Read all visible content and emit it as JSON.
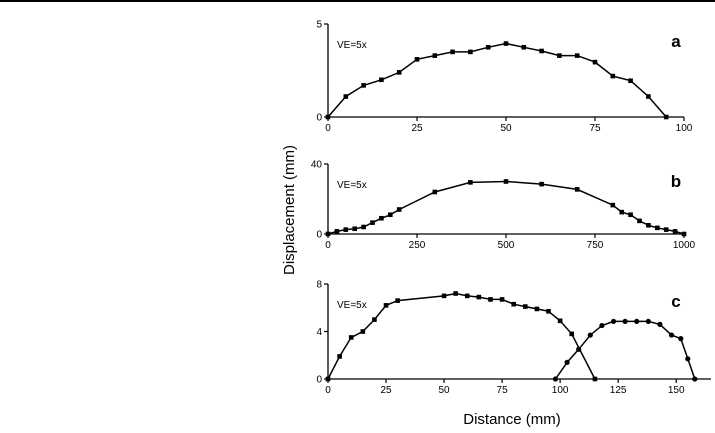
{
  "xlabel": "Distance (mm)",
  "ylabel": "Displacement (mm)",
  "chart_data": [
    {
      "type": "line",
      "panel_label": "a",
      "annotation": "VE=5x",
      "xlim": [
        0,
        100
      ],
      "ylim": [
        0,
        5
      ],
      "xticks": [
        0,
        25,
        50,
        75,
        100
      ],
      "yticks": [
        0,
        5
      ],
      "marker": "square",
      "series": [
        {
          "x": [
            0,
            5,
            10,
            15,
            20,
            25,
            30,
            35,
            40,
            45,
            50,
            55,
            60,
            65,
            70,
            75,
            80,
            85,
            90,
            95
          ],
          "y": [
            0,
            1.1,
            1.7,
            2.0,
            2.4,
            3.1,
            3.3,
            3.5,
            3.5,
            3.75,
            3.95,
            3.75,
            3.55,
            3.3,
            3.3,
            2.95,
            2.2,
            1.95,
            1.1,
            0
          ]
        }
      ]
    },
    {
      "type": "line",
      "panel_label": "b",
      "annotation": "VE=5x",
      "xlim": [
        0,
        1000
      ],
      "ylim": [
        0,
        40
      ],
      "xticks": [
        0,
        250,
        500,
        750,
        1000
      ],
      "yticks": [
        0,
        40
      ],
      "marker": "square",
      "series": [
        {
          "x": [
            0,
            25,
            50,
            75,
            100,
            125,
            150,
            175,
            200,
            300,
            400,
            500,
            600,
            700,
            800,
            825,
            850,
            875,
            900,
            925,
            950,
            975,
            1000
          ],
          "y": [
            0,
            1.5,
            2.5,
            3,
            4,
            6.5,
            9,
            11,
            14,
            24,
            29.5,
            30,
            28.5,
            25.5,
            16.5,
            12.5,
            11,
            7.5,
            5,
            3.5,
            2.5,
            1.5,
            0
          ]
        }
      ]
    },
    {
      "type": "line",
      "panel_label": "c",
      "annotation": "VE=5x",
      "xlim": [
        0,
        165
      ],
      "ylim": [
        0,
        8
      ],
      "xticks": [
        0,
        25,
        50,
        75,
        100,
        125,
        150
      ],
      "yticks": [
        0,
        4,
        8
      ],
      "series": [
        {
          "marker": "square",
          "x": [
            0,
            5,
            10,
            15,
            20,
            25,
            30,
            50,
            55,
            60,
            65,
            70,
            75,
            80,
            85,
            90,
            95,
            100,
            105,
            115
          ],
          "y": [
            0,
            1.9,
            3.5,
            4.0,
            5.0,
            6.2,
            6.6,
            7.0,
            7.2,
            7.0,
            6.9,
            6.7,
            6.7,
            6.3,
            6.1,
            5.9,
            5.7,
            4.9,
            3.8,
            0
          ]
        },
        {
          "marker": "circle",
          "x": [
            98,
            103,
            108,
            113,
            118,
            123,
            128,
            133,
            138,
            143,
            148,
            152,
            155,
            158
          ],
          "y": [
            0,
            1.4,
            2.5,
            3.7,
            4.5,
            4.85,
            4.85,
            4.85,
            4.85,
            4.6,
            3.7,
            3.4,
            1.7,
            0
          ]
        }
      ]
    }
  ]
}
